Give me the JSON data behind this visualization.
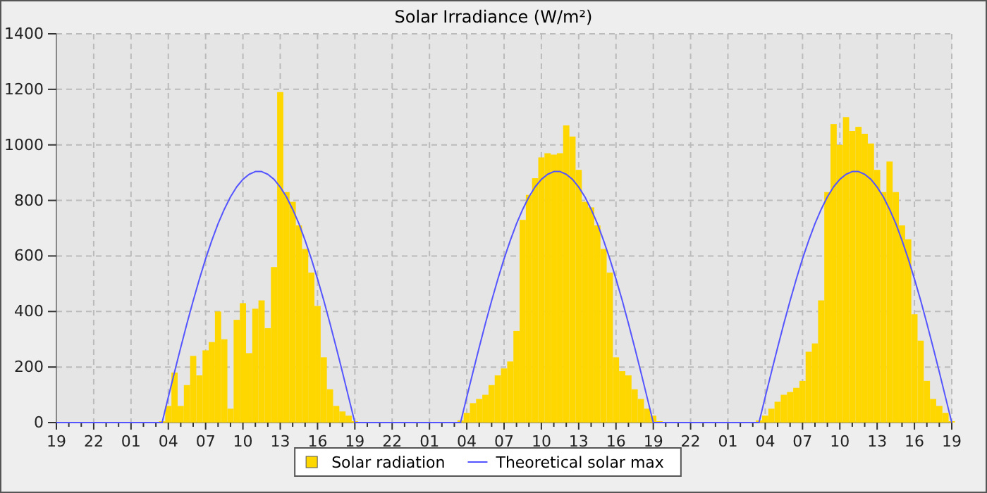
{
  "chart_data": {
    "type": "bar",
    "title": "Solar Irradiance (W/m²)",
    "categories": [
      "19",
      null,
      null,
      null,
      null,
      null,
      "22",
      null,
      null,
      null,
      null,
      null,
      "01",
      null,
      null,
      null,
      null,
      null,
      "04",
      null,
      null,
      null,
      null,
      null,
      "07",
      null,
      null,
      null,
      null,
      null,
      "10",
      null,
      null,
      null,
      null,
      null,
      "13",
      null,
      null,
      null,
      null,
      null,
      "16",
      null,
      null,
      null,
      null,
      null,
      "19",
      null,
      null,
      null,
      null,
      null,
      "22",
      null,
      null,
      null,
      null,
      null,
      "01",
      null,
      null,
      null,
      null,
      null,
      "04",
      null,
      null,
      null,
      null,
      null,
      "07",
      null,
      null,
      null,
      null,
      null,
      "10",
      null,
      null,
      null,
      null,
      null,
      "13",
      null,
      null,
      null,
      null,
      null,
      "16",
      null,
      null,
      null,
      null,
      null,
      "19",
      null,
      null,
      null,
      null,
      null,
      "22",
      null,
      null,
      null,
      null,
      null,
      "01",
      null,
      null,
      null,
      null,
      null,
      "04",
      null,
      null,
      null,
      null,
      null,
      "07",
      null,
      null,
      null,
      null,
      null,
      "10",
      null,
      null,
      null,
      null,
      null,
      "13",
      null,
      null,
      null,
      null,
      null,
      "16",
      null,
      null,
      null,
      null,
      null,
      "19"
    ],
    "ylim": [
      0,
      1400
    ],
    "yticks": [
      0,
      200,
      400,
      600,
      800,
      1000,
      1200,
      1400
    ],
    "grid": true,
    "legend": "bottom",
    "marker": "none",
    "line_style": "solid",
    "series": [
      {
        "name": "Solar radiation",
        "color": "#ffd700",
        "values": [
          null,
          null,
          null,
          null,
          null,
          null,
          null,
          null,
          null,
          null,
          null,
          null,
          null,
          null,
          null,
          null,
          null,
          5,
          60,
          180,
          60,
          135,
          240,
          170,
          260,
          290,
          400,
          300,
          50,
          370,
          430,
          250,
          410,
          440,
          340,
          560,
          1190,
          830,
          795,
          710,
          625,
          540,
          420,
          235,
          120,
          60,
          40,
          25,
          5,
          null,
          null,
          null,
          null,
          null,
          null,
          null,
          null,
          null,
          null,
          null,
          null,
          null,
          null,
          null,
          null,
          8,
          35,
          70,
          85,
          100,
          135,
          170,
          195,
          220,
          330,
          730,
          820,
          880,
          955,
          970,
          965,
          970,
          1070,
          1030,
          910,
          795,
          775,
          710,
          625,
          540,
          235,
          185,
          170,
          120,
          85,
          50,
          25,
          5,
          null,
          null,
          null,
          null,
          null,
          null,
          null,
          null,
          null,
          null,
          null,
          null,
          null,
          null,
          null,
          8,
          25,
          50,
          75,
          100,
          110,
          125,
          150,
          255,
          285,
          440,
          830,
          1075,
          1000,
          1100,
          1050,
          1065,
          1040,
          1005,
          910,
          830,
          940,
          830,
          710,
          660,
          390,
          295,
          150,
          85,
          60,
          35,
          5
        ]
      },
      {
        "name": "Theoretical solar max",
        "type": "line",
        "color": "#5555ff",
        "values": [
          0,
          0,
          0,
          0,
          0,
          0,
          0,
          0,
          0,
          0,
          0,
          0,
          0,
          0,
          0,
          0,
          0,
          0,
          92,
          182,
          271,
          357,
          439,
          517,
          590,
          656,
          716,
          768,
          813,
          849,
          876,
          894,
          904,
          904,
          894,
          876,
          848,
          813,
          768,
          717,
          656,
          590,
          517,
          440,
          357,
          271,
          182,
          91,
          0,
          0,
          0,
          0,
          0,
          0,
          0,
          0,
          0,
          0,
          0,
          0,
          0,
          0,
          0,
          0,
          0,
          0,
          92,
          182,
          271,
          357,
          439,
          517,
          590,
          656,
          716,
          768,
          813,
          849,
          876,
          894,
          904,
          904,
          894,
          876,
          848,
          813,
          768,
          717,
          656,
          590,
          517,
          440,
          357,
          271,
          182,
          91,
          0,
          0,
          0,
          0,
          0,
          0,
          0,
          0,
          0,
          0,
          0,
          0,
          0,
          0,
          0,
          0,
          0,
          0,
          92,
          182,
          271,
          357,
          439,
          517,
          590,
          656,
          716,
          768,
          813,
          849,
          876,
          894,
          904,
          904,
          894,
          876,
          848,
          813,
          768,
          717,
          656,
          590,
          517,
          440,
          357,
          271,
          182,
          91,
          0
        ]
      }
    ]
  }
}
